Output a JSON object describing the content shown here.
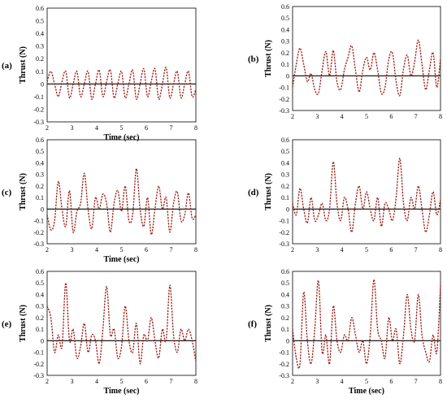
{
  "colors": {
    "series": "#9a1b12",
    "zero_line": "#000000",
    "frame": "#000000"
  },
  "chart_data": [
    {
      "type": "line",
      "panel_label": "(a)",
      "xlabel": "Time (sec)",
      "ylabel": "Thrust (N)",
      "xlim": [
        2,
        8
      ],
      "ylim": [
        -0.3,
        0.6
      ],
      "xticks": [
        "2",
        "3",
        "4",
        "5",
        "6",
        "7",
        "8"
      ],
      "yticks": [
        "-0.3",
        "-0.2",
        "-0.1",
        "0",
        "0.1",
        "0.2",
        "0.3",
        "0.4",
        "0.5",
        "0.6"
      ],
      "zero_line": true,
      "series": [
        {
          "x": [
            2.0,
            2.15,
            2.3,
            2.45,
            2.6,
            2.75,
            2.9,
            3.05,
            3.2,
            3.35,
            3.5,
            3.65,
            3.8,
            3.95,
            4.1,
            4.25,
            4.4,
            4.55,
            4.7,
            4.85,
            5.0,
            5.15,
            5.3,
            5.45,
            5.6,
            5.75,
            5.9,
            6.05,
            6.2,
            6.35,
            6.5,
            6.65,
            6.8,
            6.95,
            7.1,
            7.25,
            7.4,
            7.55,
            7.7,
            7.85,
            8.0
          ],
          "y": [
            0.02,
            0.1,
            0.0,
            -0.1,
            0.02,
            0.1,
            -0.11,
            0.0,
            0.1,
            -0.1,
            0.0,
            0.1,
            -0.12,
            0.0,
            0.11,
            -0.1,
            0.02,
            0.11,
            -0.11,
            0.0,
            0.1,
            -0.11,
            0.0,
            0.11,
            -0.12,
            0.0,
            0.12,
            -0.1,
            0.02,
            0.12,
            -0.12,
            0.0,
            0.13,
            -0.11,
            0.0,
            0.1,
            -0.11,
            0.0,
            0.1,
            -0.1,
            -0.04
          ]
        }
      ]
    },
    {
      "type": "line",
      "panel_label": "(b)",
      "xlabel": "",
      "ylabel": "Thrust (N)",
      "xlim": [
        2,
        8
      ],
      "ylim": [
        -0.3,
        0.6
      ],
      "xticks": [
        "2",
        "3",
        "4",
        "5",
        "6",
        "7",
        "8"
      ],
      "yticks": [
        "-0.3",
        "-0.2",
        "-0.1",
        "0",
        "0.1",
        "0.2",
        "0.3",
        "0.4",
        "0.5",
        "0.6"
      ],
      "zero_line": true,
      "series": [
        {
          "x": [
            2.0,
            2.15,
            2.3,
            2.45,
            2.6,
            2.75,
            2.9,
            3.05,
            3.2,
            3.35,
            3.5,
            3.65,
            3.8,
            3.95,
            4.1,
            4.25,
            4.4,
            4.55,
            4.7,
            4.85,
            5.0,
            5.15,
            5.3,
            5.45,
            5.6,
            5.75,
            5.9,
            6.05,
            6.2,
            6.35,
            6.5,
            6.65,
            6.8,
            6.95,
            7.1,
            7.25,
            7.4,
            7.55,
            7.7,
            7.85,
            8.0
          ],
          "y": [
            -0.1,
            0.1,
            0.24,
            0.1,
            -0.05,
            0.02,
            -0.12,
            -0.15,
            0.05,
            0.21,
            0.0,
            0.22,
            -0.05,
            -0.12,
            0.05,
            0.16,
            0.26,
            0.05,
            -0.14,
            0.05,
            0.16,
            0.05,
            0.2,
            0.05,
            -0.15,
            -0.1,
            0.14,
            0.2,
            -0.05,
            -0.17,
            0.06,
            0.18,
            0.0,
            0.12,
            0.31,
            0.1,
            -0.12,
            0.05,
            0.2,
            -0.1,
            0.15
          ]
        }
      ]
    },
    {
      "type": "line",
      "panel_label": "(c)",
      "xlabel": "Time (sec)",
      "ylabel": "Thrust (N)",
      "xlim": [
        2,
        8
      ],
      "ylim": [
        -0.3,
        0.6
      ],
      "xticks": [
        "2",
        "3",
        "4",
        "5",
        "6",
        "7",
        "8"
      ],
      "yticks": [
        "-0.3",
        "-0.2",
        "-0.1",
        "0",
        "0.1",
        "0.2",
        "0.3",
        "0.4",
        "0.5",
        "0.6"
      ],
      "zero_line": true,
      "series": [
        {
          "x": [
            2.0,
            2.15,
            2.3,
            2.45,
            2.6,
            2.75,
            2.9,
            3.05,
            3.2,
            3.35,
            3.5,
            3.65,
            3.8,
            3.95,
            4.1,
            4.25,
            4.4,
            4.55,
            4.7,
            4.85,
            5.0,
            5.15,
            5.3,
            5.45,
            5.6,
            5.75,
            5.9,
            6.05,
            6.2,
            6.35,
            6.5,
            6.65,
            6.8,
            6.95,
            7.1,
            7.25,
            7.4,
            7.55,
            7.7,
            7.85,
            8.0
          ],
          "y": [
            -0.05,
            -0.18,
            -0.1,
            0.24,
            0.0,
            -0.15,
            0.16,
            -0.2,
            -0.02,
            0.05,
            0.31,
            0.0,
            -0.17,
            0.1,
            0.0,
            0.13,
            0.05,
            -0.2,
            0.05,
            0.16,
            -0.02,
            0.2,
            -0.1,
            -0.05,
            0.35,
            0.0,
            -0.15,
            0.1,
            -0.22,
            0.0,
            0.2,
            0.0,
            0.1,
            -0.2,
            0.05,
            0.15,
            -0.1,
            -0.05,
            0.14,
            -0.08,
            -0.05
          ]
        }
      ]
    },
    {
      "type": "line",
      "panel_label": "(d)",
      "xlabel": "",
      "ylabel": "Thrust (N)",
      "xlim": [
        2,
        8
      ],
      "ylim": [
        -0.3,
        0.6
      ],
      "xticks": [
        "2",
        "3",
        "4",
        "5",
        "6",
        "7",
        "8"
      ],
      "yticks": [
        "-0.3",
        "-0.2",
        "-0.1",
        "0",
        "0.1",
        "0.2",
        "0.3",
        "0.4",
        "0.5",
        "0.6"
      ],
      "zero_line": true,
      "series": [
        {
          "x": [
            2.0,
            2.15,
            2.3,
            2.45,
            2.6,
            2.75,
            2.9,
            3.05,
            3.2,
            3.35,
            3.5,
            3.65,
            3.8,
            3.95,
            4.1,
            4.25,
            4.4,
            4.55,
            4.7,
            4.85,
            5.0,
            5.15,
            5.3,
            5.45,
            5.6,
            5.75,
            5.9,
            6.05,
            6.2,
            6.35,
            6.5,
            6.65,
            6.8,
            6.95,
            7.1,
            7.25,
            7.4,
            7.55,
            7.7,
            7.85,
            8.0
          ],
          "y": [
            0.05,
            -0.05,
            0.18,
            0.0,
            -0.12,
            0.1,
            -0.1,
            -0.05,
            0.05,
            -0.1,
            0.0,
            0.41,
            0.05,
            -0.1,
            0.1,
            0.0,
            -0.2,
            0.05,
            0.2,
            0.0,
            0.15,
            0.0,
            -0.1,
            0.1,
            -0.15,
            0.05,
            0.0,
            -0.1,
            0.1,
            0.44,
            0.05,
            -0.1,
            0.1,
            0.0,
            0.2,
            0.0,
            -0.2,
            -0.05,
            0.15,
            -0.05,
            0.08
          ]
        }
      ]
    },
    {
      "type": "line",
      "panel_label": "(e)",
      "xlabel": "Time (sec)",
      "ylabel": "Thrust (N)",
      "xlim": [
        2,
        8
      ],
      "ylim": [
        -0.3,
        0.6
      ],
      "xticks": [
        "2",
        "3",
        "4",
        "5",
        "6",
        "7",
        "8"
      ],
      "yticks": [
        "-0.3",
        "-0.2",
        "-0.1",
        "0",
        "0.1",
        "0.2",
        "0.3",
        "0.4",
        "0.5",
        "0.6"
      ],
      "zero_line": true,
      "series": [
        {
          "x": [
            2.0,
            2.15,
            2.3,
            2.45,
            2.6,
            2.75,
            2.9,
            3.05,
            3.2,
            3.35,
            3.5,
            3.65,
            3.8,
            3.95,
            4.1,
            4.25,
            4.4,
            4.55,
            4.7,
            4.85,
            5.0,
            5.15,
            5.3,
            5.45,
            5.6,
            5.75,
            5.9,
            6.05,
            6.2,
            6.35,
            6.5,
            6.65,
            6.8,
            6.95,
            7.1,
            7.25,
            7.4,
            7.55,
            7.7,
            7.85,
            8.0
          ],
          "y": [
            0.3,
            0.2,
            -0.1,
            0.05,
            -0.05,
            0.5,
            0.0,
            0.1,
            -0.15,
            -0.05,
            0.15,
            -0.1,
            0.05,
            0.0,
            -0.2,
            0.1,
            0.47,
            0.05,
            0.1,
            -0.15,
            -0.05,
            0.3,
            0.0,
            -0.1,
            0.15,
            -0.2,
            0.05,
            0.0,
            0.2,
            0.0,
            -0.15,
            0.1,
            0.0,
            0.48,
            0.05,
            -0.1,
            0.1,
            0.0,
            0.1,
            0.0,
            -0.18
          ]
        }
      ]
    },
    {
      "type": "line",
      "panel_label": "(f)",
      "xlabel": "Time (sec)",
      "ylabel": "Thrust (N)",
      "xlim": [
        2,
        8
      ],
      "ylim": [
        -0.3,
        0.6
      ],
      "xticks": [
        "2",
        "3",
        "4",
        "5",
        "6",
        "7",
        "8"
      ],
      "yticks": [
        "-0.3",
        "-0.2",
        "-0.1",
        "0",
        "0.1",
        "0.2",
        "0.3",
        "0.4",
        "0.5",
        "0.6"
      ],
      "zero_line": true,
      "series": [
        {
          "x": [
            2.0,
            2.15,
            2.3,
            2.45,
            2.6,
            2.75,
            2.9,
            3.05,
            3.2,
            3.35,
            3.5,
            3.65,
            3.8,
            3.95,
            4.1,
            4.25,
            4.4,
            4.55,
            4.7,
            4.85,
            5.0,
            5.15,
            5.3,
            5.45,
            5.6,
            5.75,
            5.9,
            6.05,
            6.2,
            6.35,
            6.5,
            6.65,
            6.8,
            6.95,
            7.1,
            7.25,
            7.4,
            7.55,
            7.7,
            7.85,
            8.0
          ],
          "y": [
            0.1,
            -0.15,
            -0.2,
            0.42,
            0.0,
            -0.2,
            0.1,
            0.52,
            -0.1,
            0.05,
            -0.2,
            0.3,
            0.0,
            -0.1,
            0.05,
            0.0,
            0.2,
            0.05,
            -0.1,
            0.0,
            -0.2,
            0.05,
            0.53,
            0.1,
            0.0,
            -0.15,
            0.2,
            0.0,
            0.1,
            -0.2,
            0.05,
            0.4,
            0.1,
            0.0,
            0.4,
            0.05,
            -0.1,
            -0.18,
            0.05,
            -0.1,
            0.48
          ]
        }
      ]
    }
  ]
}
